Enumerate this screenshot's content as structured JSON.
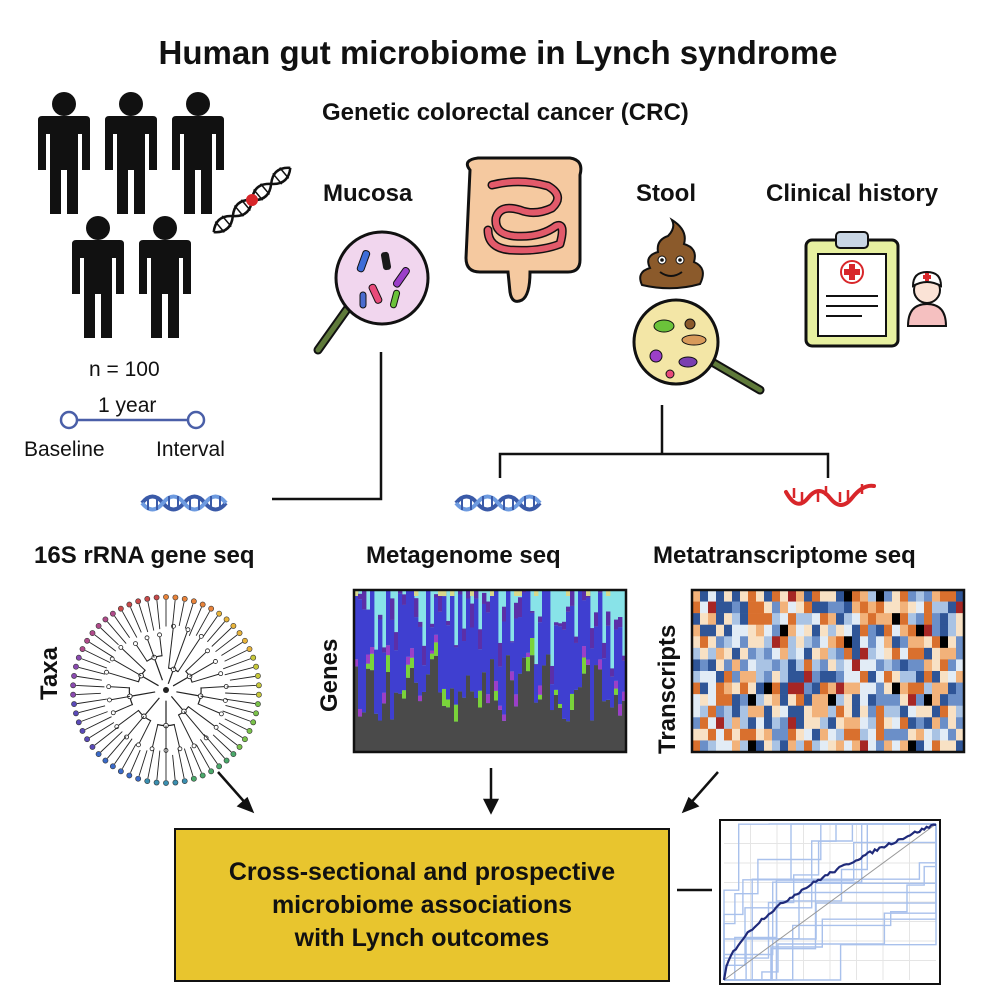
{
  "title": "Human gut microbiome in Lynch syndrome",
  "subtitle": "Genetic colorectal cancer (CRC)",
  "cohort": {
    "n_label": "n = 100",
    "duration_label": "1 year",
    "timepoints": [
      "Baseline",
      "Interval"
    ],
    "icons": [
      "person-icon",
      "person-icon",
      "person-icon",
      "person-icon",
      "person-icon"
    ]
  },
  "samples": {
    "mucosa_label": "Mucosa",
    "stool_label": "Stool",
    "clinical_label": "Clinical history"
  },
  "assays": {
    "s16_label": "16S rRNA gene seq",
    "metagenome_label": "Metagenome seq",
    "metatranscriptome_label": "Metatranscriptome seq"
  },
  "axis_labels": {
    "taxa": "Taxa",
    "genes": "Genes",
    "transcripts": "Transcripts"
  },
  "outcome": {
    "lines": [
      "Cross-sectional and prospective",
      "microbiome associations",
      "with Lynch outcomes"
    ]
  },
  "colors": {
    "outcome_box": "#E8C52E",
    "dna_blue": "#3A5AA8",
    "rna_red": "#D8262A",
    "stacked_palette": [
      "#4A4A4A",
      "#3F3FD0",
      "#5B2FA8",
      "#7AD33A",
      "#9B3FC8",
      "#88E3E8",
      "#D8D88A"
    ],
    "heatmap_palette": [
      "#2F5597",
      "#6B8FC8",
      "#A9C3E4",
      "#E2ECF6",
      "#F8E1C4",
      "#F2B27A",
      "#D9702E",
      "#A62624",
      "#000000"
    ]
  }
}
